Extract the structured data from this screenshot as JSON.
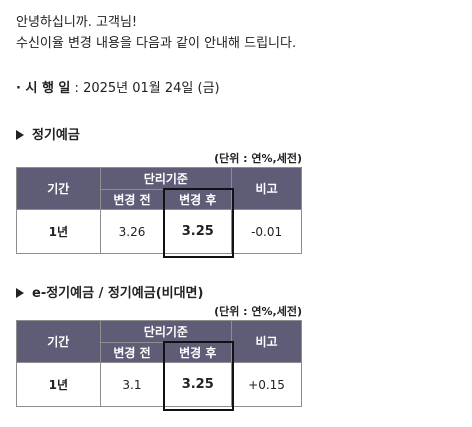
{
  "greeting": {
    "line1": "안녕하십니까. 고객님!",
    "line2": "수신이율 변경 내용을 다음과 같이 안내해 드립니다."
  },
  "effective": {
    "prefix": "· 시 행 일",
    "sep": " : ",
    "date": "2025년 01월 24일 (금)"
  },
  "sections": [
    {
      "title": "정기예금",
      "unit": "(단위 : 연%,세전)",
      "headers": {
        "period": "기간",
        "group": "단리기준",
        "before": "변경 전",
        "after": "변경 후",
        "note": "비고"
      },
      "rows": [
        {
          "period": "1년",
          "before": "3.26",
          "after": "3.25",
          "note": "-0.01"
        }
      ]
    },
    {
      "title": "e-정기예금 / 정기예금(비대면)",
      "unit": "(단위 : 연%,세전)",
      "headers": {
        "period": "기간",
        "group": "단리기준",
        "before": "변경 전",
        "after": "변경 후",
        "note": "비고"
      },
      "rows": [
        {
          "period": "1년",
          "before": "3.1",
          "after": "3.25",
          "note": "+0.15"
        }
      ]
    }
  ],
  "colors": {
    "header_bg": "#5f5c78",
    "header_text": "#ffffff",
    "border": "#8e8e8e",
    "highlight": "#111111"
  }
}
